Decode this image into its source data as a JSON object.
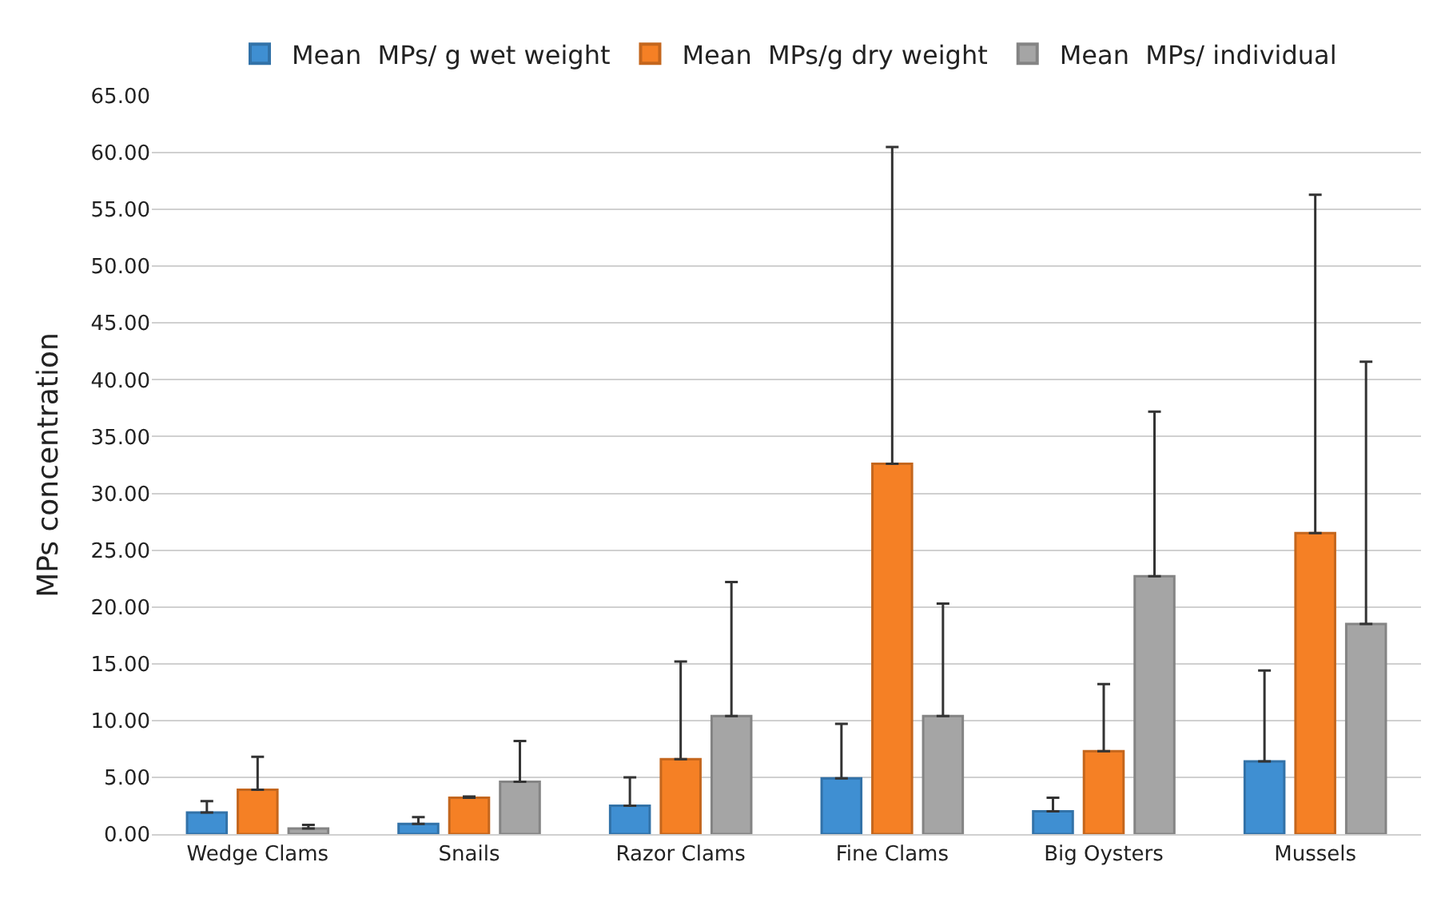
{
  "chart_data": {
    "type": "bar",
    "ylabel": "MPs concentration",
    "categories": [
      "Wedge Clams",
      "Snails",
      "Razor Clams",
      "Fine Clams",
      "Big Oysters",
      "Mussels"
    ],
    "series": [
      {
        "name": "Mean  MPs/ g wet weight",
        "color": "#3f8fd2",
        "values": [
          1.9,
          0.9,
          2.5,
          4.9,
          2.0,
          6.4
        ],
        "errors": [
          [
            1.9,
            2.9
          ],
          [
            0.9,
            1.5
          ],
          [
            2.5,
            5.0
          ],
          [
            4.9,
            9.7
          ],
          [
            2.0,
            3.2
          ],
          [
            6.4,
            14.4
          ]
        ]
      },
      {
        "name": "Mean  MPs/g dry weight",
        "color": "#f58025",
        "values": [
          3.9,
          3.2,
          6.6,
          32.6,
          7.3,
          26.5
        ],
        "errors": [
          [
            3.9,
            6.8
          ],
          [
            3.2,
            3.3
          ],
          [
            6.6,
            15.2
          ],
          [
            32.6,
            60.5
          ],
          [
            7.3,
            13.2
          ],
          [
            26.5,
            56.3
          ]
        ]
      },
      {
        "name": "Mean  MPs/ individual",
        "color": "#a5a5a5",
        "values": [
          0.5,
          4.6,
          10.4,
          10.4,
          22.7,
          18.5
        ],
        "errors": [
          [
            0.5,
            0.8
          ],
          [
            4.6,
            8.2
          ],
          [
            10.4,
            22.2
          ],
          [
            10.4,
            20.3
          ],
          [
            22.7,
            37.2
          ],
          [
            18.5,
            41.6
          ]
        ]
      }
    ],
    "ylim": [
      0,
      65
    ],
    "yticks": [
      {
        "value": 0,
        "label": "0.00"
      },
      {
        "value": 5,
        "label": "5.00"
      },
      {
        "value": 10,
        "label": "10.00"
      },
      {
        "value": 15,
        "label": "15.00"
      },
      {
        "value": 20,
        "label": "20.00"
      },
      {
        "value": 25,
        "label": "25.00"
      },
      {
        "value": 30,
        "label": "30.00"
      },
      {
        "value": 35,
        "label": "35.00"
      },
      {
        "value": 40,
        "label": "40.00"
      },
      {
        "value": 45,
        "label": "45.00"
      },
      {
        "value": 50,
        "label": "50.00"
      },
      {
        "value": 55,
        "label": "55.00"
      },
      {
        "value": 60,
        "label": "60.00"
      },
      {
        "value": 65,
        "label": "65.00"
      }
    ],
    "grid": "y",
    "legend": "top"
  }
}
